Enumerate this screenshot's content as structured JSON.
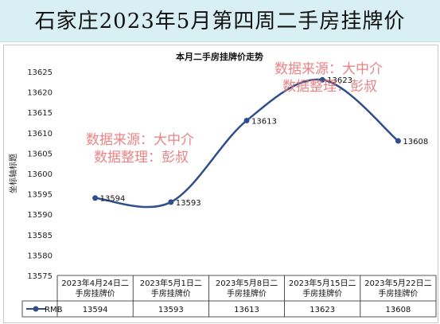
{
  "title_bar": {
    "title": "石家庄2023年5月第四周二手房挂牌价"
  },
  "watermarks": [
    {
      "source": "数据来源：大中介",
      "organizer": "数据整理：彭叔"
    },
    {
      "source": "数据来源：大中介",
      "organizer": "数据整理：彭叔"
    }
  ],
  "chart_data": {
    "type": "line",
    "title": "本月二手房挂牌价走势",
    "xlabel": "",
    "ylabel": "坐标轴标题",
    "categories": [
      "2023年4月24日二手房挂牌价",
      "2023年5月1日二手房挂牌价",
      "2023年5月8日二手房挂牌价",
      "2023年5月15日二手房挂牌价",
      "2023年5月22日二手房挂牌价"
    ],
    "series": [
      {
        "name": "RMB",
        "values": [
          13594,
          13593,
          13613,
          13623,
          13608
        ],
        "color": "#2f4f8a"
      }
    ],
    "ylim": [
      13575,
      13625
    ],
    "yticks": [
      13575,
      13580,
      13585,
      13590,
      13595,
      13600,
      13605,
      13610,
      13615,
      13620,
      13625
    ],
    "data_labels": true,
    "smooth": true,
    "grid": false,
    "legend": "data-table",
    "data_table": true
  }
}
